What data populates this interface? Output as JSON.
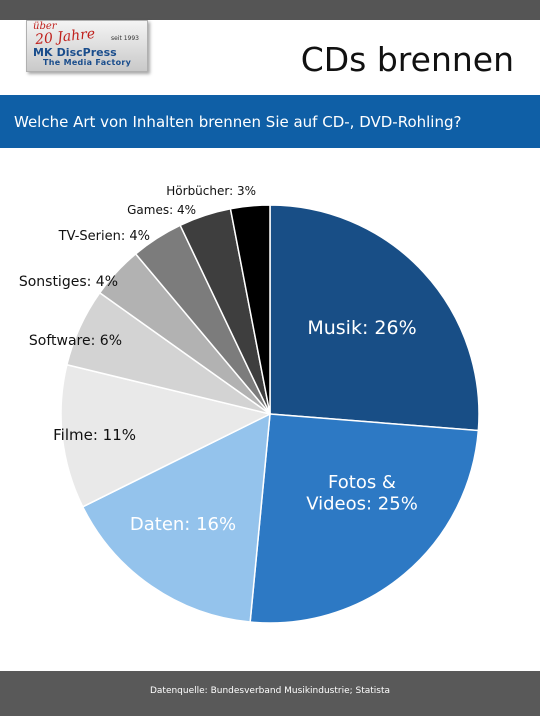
{
  "logo": {
    "anniversary_prefix": "über",
    "anniversary": "20 Jahre",
    "since": "seit 1993",
    "brand_mk": "MK",
    "brand_name": "DiscPress",
    "tagline": "The Media Factory"
  },
  "title": "CDs brennen",
  "question": "Welche Art von Inhalten brennen Sie auf CD-, DVD-Rohling?",
  "footer": {
    "source": "Datenquelle: Bundesverband Musikindustrie; Statista"
  },
  "chart_data": {
    "type": "pie",
    "title": "",
    "unit": "%",
    "slices": [
      {
        "label": "Musik",
        "value": 26,
        "color": "#184e86",
        "label_inside": true,
        "text_color": "#ffffff"
      },
      {
        "label": "Fotos & Videos",
        "label_lines": [
          "Fotos &",
          "Videos: 25%"
        ],
        "value": 25,
        "color": "#2d79c4",
        "label_inside": true,
        "text_color": "#ffffff"
      },
      {
        "label": "Daten",
        "value": 16,
        "color": "#94c3ec",
        "label_inside": true,
        "text_color": "#ffffff"
      },
      {
        "label": "Filme",
        "value": 11,
        "color": "#e9e9e9",
        "label_inside": false,
        "text_color": "#111111"
      },
      {
        "label": "Software",
        "value": 6,
        "color": "#d3d3d3",
        "label_inside": false,
        "text_color": "#111111"
      },
      {
        "label": "Sonstiges",
        "value": 4,
        "color": "#b2b2b2",
        "label_inside": false,
        "text_color": "#111111"
      },
      {
        "label": "TV-Serien",
        "value": 4,
        "color": "#7c7c7c",
        "label_inside": false,
        "text_color": "#111111"
      },
      {
        "label": "Games",
        "value": 4,
        "color": "#3e3e3e",
        "label_inside": false,
        "text_color": "#111111"
      },
      {
        "label": "Hörbücher",
        "value": 3,
        "color": "#000000",
        "label_inside": false,
        "text_color": "#111111"
      }
    ]
  }
}
